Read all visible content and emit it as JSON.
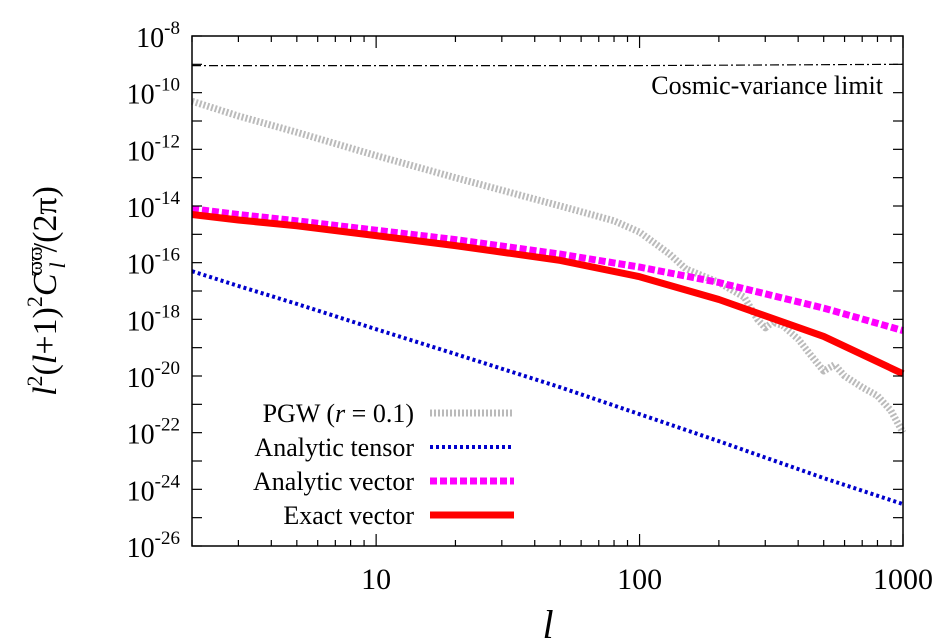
{
  "chart_data": {
    "type": "line",
    "title": "",
    "xlabel": "l",
    "ylabel": "l^2(l+1)^2 C_l^{ϖϖ}/(2π)",
    "xscale": "log",
    "yscale": "log",
    "xlim": [
      2,
      1000
    ],
    "ylim": [
      1e-26,
      1e-08
    ],
    "grid": false,
    "legend_position": "bottom-left",
    "x_ticks": [
      {
        "value": 10,
        "label": "10"
      },
      {
        "value": 100,
        "label": "100"
      },
      {
        "value": 1000,
        "label": "1000"
      }
    ],
    "y_ticks": [
      {
        "value": 1e-08,
        "base": "10",
        "exp": "-8"
      },
      {
        "value": 1e-10,
        "base": "10",
        "exp": "-10"
      },
      {
        "value": 1e-12,
        "base": "10",
        "exp": "-12"
      },
      {
        "value": 1e-14,
        "base": "10",
        "exp": "-14"
      },
      {
        "value": 1e-16,
        "base": "10",
        "exp": "-16"
      },
      {
        "value": 1e-18,
        "base": "10",
        "exp": "-18"
      },
      {
        "value": 1e-20,
        "base": "10",
        "exp": "-20"
      },
      {
        "value": 1e-22,
        "base": "10",
        "exp": "-22"
      },
      {
        "value": 1e-24,
        "base": "10",
        "exp": "-24"
      },
      {
        "value": 1e-26,
        "base": "10",
        "exp": "-26"
      }
    ],
    "annotations": [
      {
        "text": "Cosmic-variance limit"
      }
    ],
    "series": [
      {
        "name": "Cosmic-variance limit",
        "in_legend": false,
        "color": "#000000",
        "style": "dash-dot",
        "x": [
          2,
          10,
          100,
          1000
        ],
        "y": [
          9e-10,
          9e-10,
          9e-10,
          1e-09
        ]
      },
      {
        "name": "PGW (r = 0.1)",
        "color": "#bbbbbb",
        "style": "dotted-thick",
        "x": [
          2,
          3,
          5,
          10,
          20,
          50,
          80,
          100,
          130,
          150,
          200,
          250,
          280,
          300,
          320,
          350,
          400,
          450,
          500,
          550,
          600,
          700,
          800,
          900,
          1000
        ],
        "y": [
          5e-11,
          1.5e-11,
          4e-12,
          6e-13,
          1e-13,
          1e-14,
          3e-15,
          1.2e-15,
          2e-16,
          6e-17,
          2e-17,
          6e-18,
          1e-18,
          5e-19,
          8e-19,
          6e-19,
          2e-19,
          5e-20,
          1.5e-20,
          2.5e-20,
          1e-20,
          4e-21,
          2e-21,
          6e-22,
          1e-22
        ]
      },
      {
        "name": "Analytic tensor",
        "color": "#0000cc",
        "style": "dotted",
        "x": [
          2,
          3,
          5,
          10,
          20,
          50,
          100,
          200,
          500,
          1000
        ],
        "y": [
          5e-17,
          1.5e-17,
          3.5e-18,
          4.5e-19,
          6e-20,
          4e-21,
          4.5e-22,
          5e-23,
          2.5e-24,
          3e-25
        ]
      },
      {
        "name": "Analytic vector",
        "color": "#ff00ff",
        "style": "dashed",
        "x": [
          2,
          3,
          5,
          10,
          20,
          50,
          100,
          200,
          500,
          1000
        ],
        "y": [
          8e-15,
          5e-15,
          3e-15,
          1.4e-15,
          6.5e-16,
          2e-16,
          7e-17,
          2e-17,
          2.5e-18,
          4e-19
        ]
      },
      {
        "name": "Exact vector",
        "color": "#ff0000",
        "style": "solid",
        "x": [
          2,
          3,
          5,
          10,
          20,
          50,
          100,
          200,
          500,
          1000
        ],
        "y": [
          5e-15,
          3.2e-15,
          2e-15,
          9e-16,
          4e-16,
          1.2e-16,
          3.2e-17,
          5e-18,
          2.5e-19,
          1.2e-20
        ]
      }
    ]
  }
}
